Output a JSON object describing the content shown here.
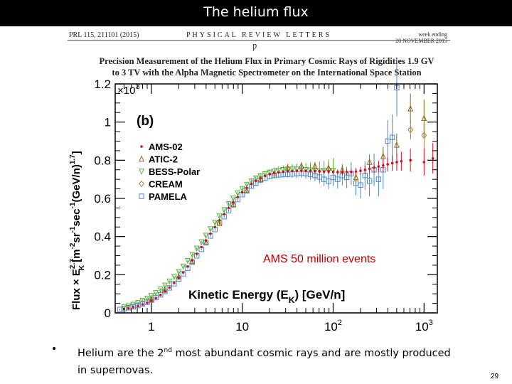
{
  "slide": {
    "title": "The helium flux",
    "page_number": "29"
  },
  "paper": {
    "header_left": "PRL 115, 211101 (2015)",
    "header_center": "PHYSICAL REVIEW LETTERS",
    "header_right_1": "week ending",
    "header_right_2": "20 NOVEMBER 2015",
    "symbol": "Ƿ",
    "title_line1": "Precision Measurement of the Helium Flux in Primary Cosmic Rays of Rigidities 1.9 GV",
    "title_line2": "to 3 TV with the Alpha Magnetic Spectrometer on the International Space Station"
  },
  "bullet": {
    "marker": "•",
    "text_pre": "Helium are the 2",
    "text_sup": "nd",
    "text_post": " most abundant cosmic rays and are mostly produced in supernovas."
  },
  "chart_data": {
    "type": "scatter",
    "panel_label": "(b)",
    "annotation": "AMS 50 million events",
    "xlabel_main": "Kinetic Energy (E",
    "xlabel_sub": "K",
    "xlabel_unit": ")  [GeV/n]",
    "ylabel": "Flux × E_K^2.7 [m^-2 sr^-1 sec^-1 (GeV/n)^1.7]",
    "ylabel_parts": {
      "a": "Flux × E",
      "b": "2.7",
      "c": "K",
      "d": " [m",
      "e": "-2",
      "f": "sr",
      "g": "-1",
      "h": "sec",
      "i": "-1",
      "j": "(GeV/n)",
      "k": "1.7",
      "l": "]"
    },
    "y_multiplier_base": "×10",
    "y_multiplier_exp": "3",
    "x_scale": "log",
    "xlim": [
      0.4,
      1400
    ],
    "ylim": [
      0,
      1.2
    ],
    "x_ticks": [
      {
        "value": 1,
        "base": "1",
        "exp": ""
      },
      {
        "value": 10,
        "base": "10",
        "exp": ""
      },
      {
        "value": 100,
        "base": "10",
        "exp": "2"
      },
      {
        "value": 1000,
        "base": "10",
        "exp": "3"
      }
    ],
    "y_ticks": [
      {
        "value": 0,
        "label": "0"
      },
      {
        "value": 0.2,
        "label": "0.2"
      },
      {
        "value": 0.4,
        "label": "0.4"
      },
      {
        "value": 0.6,
        "label": "0.6"
      },
      {
        "value": 0.8,
        "label": "0.8"
      },
      {
        "value": 1.0,
        "label": "1"
      },
      {
        "value": 1.2,
        "label": "1.2"
      }
    ],
    "legend_placement": "left",
    "series": [
      {
        "name": "AMS-02",
        "color": "#cc1122",
        "marker": "dot",
        "x": [
          0.5,
          0.56,
          0.63,
          0.71,
          0.8,
          0.9,
          1.0,
          1.12,
          1.26,
          1.41,
          1.58,
          1.78,
          2.0,
          2.24,
          2.51,
          2.82,
          3.16,
          3.55,
          3.98,
          4.47,
          5.01,
          5.62,
          6.31,
          7.08,
          7.94,
          8.91,
          10,
          11.2,
          12.6,
          14.1,
          15.8,
          17.8,
          20,
          22.4,
          25.1,
          28.2,
          31.6,
          35.5,
          39.8,
          44.7,
          50.1,
          56.2,
          63.1,
          70.8,
          79.4,
          89.1,
          100,
          112,
          126,
          141,
          158,
          178,
          200,
          224,
          251,
          282,
          316,
          355,
          398,
          447,
          501,
          562,
          708,
          1000,
          1250
        ],
        "y": [
          0.02,
          0.024,
          0.03,
          0.036,
          0.044,
          0.053,
          0.064,
          0.078,
          0.094,
          0.112,
          0.133,
          0.157,
          0.183,
          0.212,
          0.243,
          0.276,
          0.31,
          0.345,
          0.38,
          0.415,
          0.45,
          0.485,
          0.518,
          0.55,
          0.58,
          0.607,
          0.632,
          0.655,
          0.675,
          0.692,
          0.706,
          0.718,
          0.727,
          0.733,
          0.737,
          0.74,
          0.742,
          0.743,
          0.744,
          0.744,
          0.744,
          0.744,
          0.743,
          0.742,
          0.741,
          0.74,
          0.739,
          0.738,
          0.738,
          0.738,
          0.739,
          0.741,
          0.745,
          0.75,
          0.755,
          0.761,
          0.767,
          0.773,
          0.779,
          0.785,
          0.79,
          0.795,
          0.8,
          0.79,
          0.81
        ],
        "yerr": [
          0.005,
          0.005,
          0.005,
          0.005,
          0.005,
          0.005,
          0.005,
          0.005,
          0.005,
          0.005,
          0.005,
          0.005,
          0.005,
          0.005,
          0.005,
          0.005,
          0.005,
          0.005,
          0.005,
          0.005,
          0.005,
          0.005,
          0.005,
          0.005,
          0.005,
          0.005,
          0.005,
          0.005,
          0.005,
          0.005,
          0.005,
          0.005,
          0.006,
          0.006,
          0.006,
          0.006,
          0.006,
          0.006,
          0.007,
          0.007,
          0.008,
          0.008,
          0.009,
          0.01,
          0.01,
          0.011,
          0.012,
          0.013,
          0.014,
          0.015,
          0.016,
          0.018,
          0.02,
          0.022,
          0.024,
          0.027,
          0.03,
          0.033,
          0.037,
          0.041,
          0.045,
          0.05,
          0.06,
          0.07,
          0.08
        ]
      },
      {
        "name": "ATIC-2",
        "color": "#8a6a1a",
        "marker": "triangle-up",
        "x": [
          1.0,
          1.4,
          2.0,
          2.8,
          4.0,
          5.6,
          8.0,
          11.2,
          16,
          22.4,
          31.6,
          44.7,
          63,
          89,
          126,
          178,
          251,
          355,
          500,
          708,
          1000
        ],
        "y": [
          0.07,
          0.12,
          0.19,
          0.27,
          0.37,
          0.47,
          0.57,
          0.64,
          0.7,
          0.73,
          0.76,
          0.77,
          0.77,
          0.76,
          0.75,
          0.71,
          0.79,
          0.82,
          0.88,
          1.07,
          1.02
        ],
        "yerr": [
          0.01,
          0.01,
          0.01,
          0.01,
          0.01,
          0.01,
          0.01,
          0.01,
          0.01,
          0.02,
          0.02,
          0.02,
          0.02,
          0.03,
          0.03,
          0.03,
          0.04,
          0.05,
          0.06,
          0.08,
          0.1
        ]
      },
      {
        "name": "BESS-Polar",
        "color": "#5ab03a",
        "marker": "triangle-down",
        "x": [
          0.5,
          0.56,
          0.63,
          0.71,
          0.8,
          0.9,
          1.0,
          1.12,
          1.26,
          1.41,
          1.58,
          1.78,
          2.0,
          2.24,
          2.51,
          2.82,
          3.16,
          3.55,
          3.98,
          4.47,
          5.01,
          5.62,
          6.31,
          7.08,
          7.94,
          8.91,
          10,
          11.2,
          12.6,
          14.1,
          15.8,
          17.8,
          20,
          22.4,
          25.1,
          28.2,
          31.6,
          35.5,
          39.8,
          44.7,
          50.1,
          56.2,
          63.1,
          70.8,
          79.4,
          89.1,
          100
        ],
        "y": [
          0.03,
          0.036,
          0.044,
          0.053,
          0.064,
          0.076,
          0.09,
          0.106,
          0.124,
          0.144,
          0.166,
          0.19,
          0.216,
          0.244,
          0.274,
          0.305,
          0.338,
          0.372,
          0.406,
          0.44,
          0.474,
          0.507,
          0.54,
          0.572,
          0.6,
          0.627,
          0.651,
          0.673,
          0.691,
          0.706,
          0.718,
          0.728,
          0.736,
          0.742,
          0.747,
          0.75,
          0.752,
          0.753,
          0.753,
          0.752,
          0.75,
          0.748,
          0.746,
          0.745,
          0.745,
          0.745,
          0.746
        ],
        "yerr": [
          0.006,
          0.006,
          0.006,
          0.006,
          0.006,
          0.006,
          0.006,
          0.006,
          0.006,
          0.006,
          0.006,
          0.006,
          0.006,
          0.006,
          0.006,
          0.006,
          0.006,
          0.006,
          0.006,
          0.006,
          0.007,
          0.007,
          0.007,
          0.008,
          0.008,
          0.009,
          0.01,
          0.011,
          0.012,
          0.013,
          0.014,
          0.015,
          0.017,
          0.019,
          0.021,
          0.023,
          0.025,
          0.027,
          0.03,
          0.033,
          0.036,
          0.04,
          0.044,
          0.048,
          0.053,
          0.058,
          0.064
        ]
      },
      {
        "name": "CREAM",
        "color": "#b07a3a",
        "marker": "diamond",
        "x": [
          710,
          1000
        ],
        "y": [
          0.96,
          0.93
        ],
        "yerr": [
          0.05,
          0.07
        ]
      },
      {
        "name": "PAMELA",
        "color": "#4a86c8",
        "marker": "square",
        "x": [
          0.45,
          0.5,
          0.56,
          0.63,
          0.71,
          0.8,
          0.9,
          1.0,
          1.12,
          1.26,
          1.41,
          1.58,
          1.78,
          2.0,
          2.24,
          2.51,
          2.82,
          3.16,
          3.55,
          3.98,
          4.47,
          5.01,
          5.62,
          6.31,
          7.08,
          7.94,
          8.91,
          10,
          11.2,
          12.6,
          14.1,
          15.8,
          17.8,
          20,
          22.4,
          25.1,
          28.2,
          31.6,
          35.5,
          39.8,
          44.7,
          50.1,
          56.2,
          63.1,
          70.8,
          79.4,
          89.1,
          100,
          112,
          126,
          141,
          158,
          178,
          200,
          224,
          251,
          282,
          316,
          355,
          398,
          447,
          501
        ],
        "y": [
          0.018,
          0.022,
          0.027,
          0.032,
          0.039,
          0.047,
          0.056,
          0.067,
          0.08,
          0.095,
          0.112,
          0.131,
          0.153,
          0.178,
          0.205,
          0.234,
          0.266,
          0.299,
          0.333,
          0.368,
          0.403,
          0.437,
          0.471,
          0.504,
          0.536,
          0.566,
          0.594,
          0.62,
          0.644,
          0.664,
          0.681,
          0.695,
          0.706,
          0.714,
          0.72,
          0.723,
          0.725,
          0.726,
          0.728,
          0.73,
          0.732,
          0.73,
          0.726,
          0.72,
          0.712,
          0.7,
          0.69,
          0.71,
          0.7,
          0.72,
          0.71,
          0.73,
          0.68,
          0.67,
          0.72,
          0.69,
          0.75,
          0.7,
          0.75,
          0.9,
          0.92,
          1.18
        ],
        "yerr": [
          0.005,
          0.005,
          0.005,
          0.005,
          0.005,
          0.005,
          0.005,
          0.005,
          0.005,
          0.005,
          0.005,
          0.005,
          0.005,
          0.005,
          0.005,
          0.005,
          0.005,
          0.005,
          0.005,
          0.005,
          0.006,
          0.006,
          0.006,
          0.007,
          0.007,
          0.008,
          0.008,
          0.009,
          0.01,
          0.01,
          0.011,
          0.012,
          0.013,
          0.014,
          0.015,
          0.016,
          0.017,
          0.018,
          0.02,
          0.022,
          0.024,
          0.026,
          0.028,
          0.03,
          0.033,
          0.036,
          0.04,
          0.044,
          0.048,
          0.052,
          0.056,
          0.06,
          0.065,
          0.07,
          0.075,
          0.08,
          0.085,
          0.09,
          0.1,
          0.11,
          0.12,
          0.15
        ]
      }
    ]
  }
}
